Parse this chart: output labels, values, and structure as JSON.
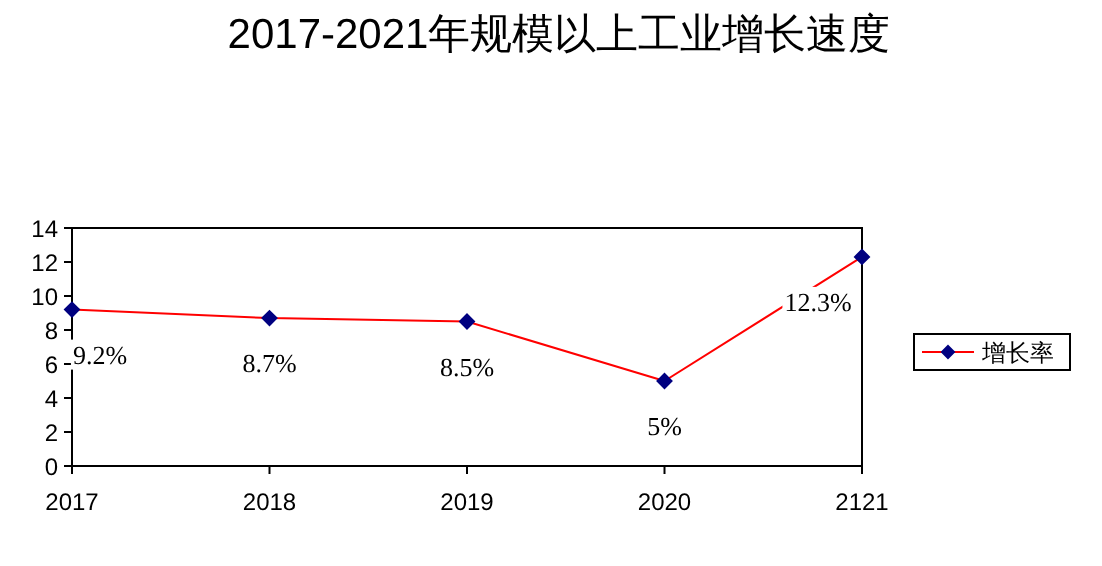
{
  "chart_data": {
    "type": "line",
    "title": "2017-2021年规模以上工业增长速度",
    "categories": [
      "2017",
      "2018",
      "2019",
      "2020",
      "2121"
    ],
    "series": [
      {
        "name": "增长率",
        "color": "#ff0000",
        "colors": [
          "#000080",
          "#000080",
          "#000080",
          "#000080",
          "#000080"
        ],
        "values": [
          9.2,
          8.7,
          8.5,
          5,
          12.3
        ],
        "value_labels": [
          "9.2%",
          "8.7%",
          "8.5%",
          "5%",
          "12.3%"
        ]
      }
    ],
    "ylim": [
      0,
      14
    ],
    "yticks": [
      0,
      2,
      4,
      6,
      8,
      10,
      12,
      14
    ],
    "grid": false,
    "legend": "right",
    "marker": "diamond",
    "line_style": "solid"
  }
}
